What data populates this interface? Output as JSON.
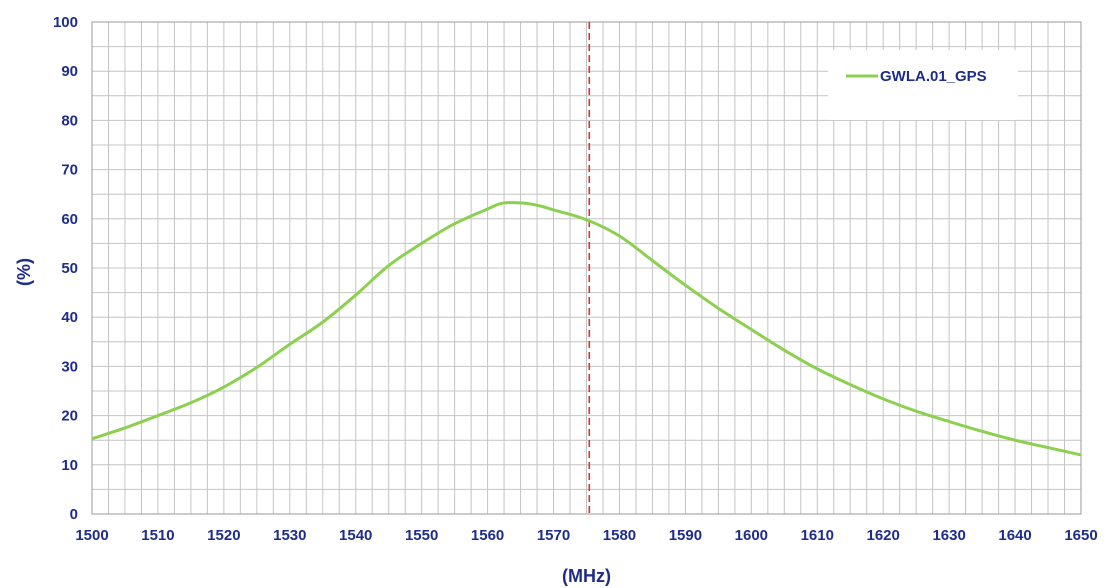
{
  "chart_data": {
    "type": "line",
    "title": "",
    "xlabel": "(MHz)",
    "ylabel": "(%)",
    "xlim": [
      1500,
      1650
    ],
    "ylim": [
      0,
      100
    ],
    "x_ticks": [
      1500,
      1510,
      1520,
      1530,
      1540,
      1550,
      1560,
      1570,
      1580,
      1590,
      1600,
      1610,
      1620,
      1630,
      1640,
      1650
    ],
    "y_ticks": [
      0,
      10,
      20,
      30,
      40,
      50,
      60,
      70,
      80,
      90,
      100
    ],
    "grid": true,
    "legend_position": "top-right",
    "marker_line": {
      "x": 1575.42,
      "color": "#e03030",
      "style": "dashed"
    },
    "series": [
      {
        "name": "GWLA.01_GPS",
        "color": "#8cd050",
        "x": [
          1500,
          1505,
          1510,
          1515,
          1520,
          1525,
          1530,
          1535,
          1540,
          1545,
          1550,
          1555,
          1560,
          1562,
          1564,
          1566,
          1568,
          1570,
          1575,
          1580,
          1585,
          1590,
          1595,
          1600,
          1605,
          1610,
          1615,
          1620,
          1625,
          1630,
          1635,
          1640,
          1645,
          1650
        ],
        "y": [
          15.3,
          17.5,
          20.0,
          22.6,
          25.8,
          29.8,
          34.5,
          39.0,
          44.5,
          50.5,
          55.0,
          59.0,
          62.0,
          63.1,
          63.3,
          63.1,
          62.6,
          61.8,
          59.8,
          56.5,
          51.5,
          46.5,
          41.8,
          37.5,
          33.3,
          29.5,
          26.3,
          23.4,
          20.9,
          18.8,
          16.8,
          15.0,
          13.5,
          12.0
        ]
      }
    ]
  }
}
